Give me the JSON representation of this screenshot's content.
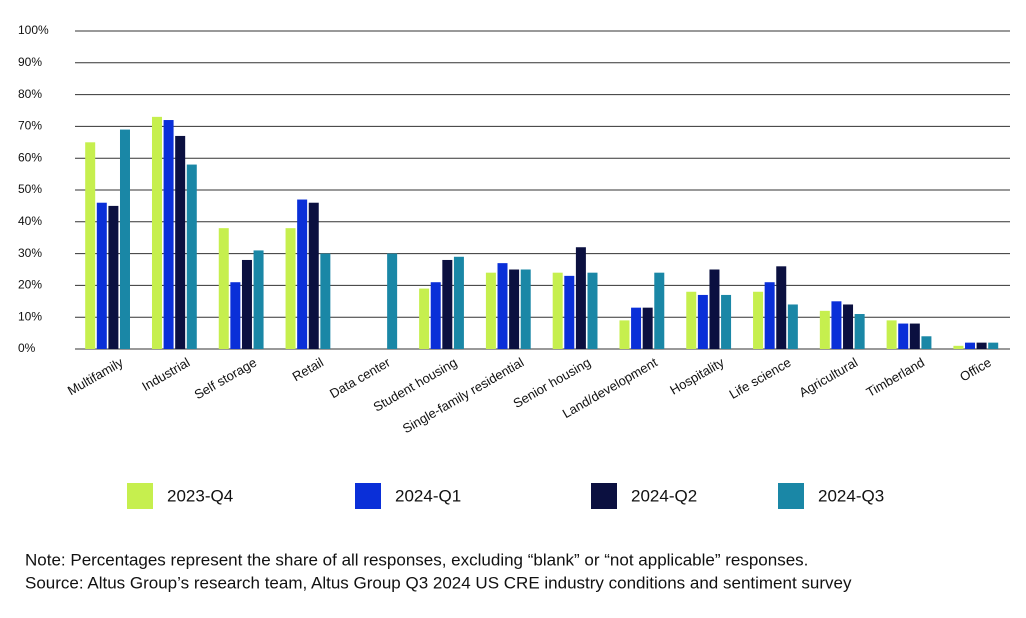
{
  "chart_data": {
    "type": "bar",
    "categories": [
      "Multifamily",
      "Industrial",
      "Self storage",
      "Retail",
      "Data center",
      "Student housing",
      "Single-family residential",
      "Senior housing",
      "Land/development",
      "Hospitality",
      "Life science",
      "Agricultural",
      "Timberland",
      "Office"
    ],
    "series": [
      {
        "name": "2023-Q4",
        "color": "#c6ef4e",
        "values": [
          65,
          73,
          38,
          38,
          null,
          19,
          24,
          24,
          9,
          18,
          18,
          12,
          9,
          1
        ]
      },
      {
        "name": "2024-Q1",
        "color": "#0a2fd8",
        "values": [
          46,
          72,
          21,
          47,
          null,
          21,
          27,
          23,
          13,
          17,
          21,
          15,
          8,
          2
        ]
      },
      {
        "name": "2024-Q2",
        "color": "#0b1040",
        "values": [
          45,
          67,
          28,
          46,
          null,
          28,
          25,
          32,
          13,
          25,
          26,
          14,
          8,
          2
        ]
      },
      {
        "name": "2024-Q3",
        "color": "#1a87a6",
        "values": [
          69,
          58,
          31,
          30,
          30,
          29,
          25,
          24,
          24,
          17,
          14,
          11,
          4,
          2
        ]
      }
    ],
    "ylim": [
      0,
      100
    ],
    "yticks": [
      {
        "value": 0,
        "label": "0%"
      },
      {
        "value": 10,
        "label": "10%"
      },
      {
        "value": 20,
        "label": "20%"
      },
      {
        "value": 30,
        "label": "30%"
      },
      {
        "value": 40,
        "label": "40%"
      },
      {
        "value": 50,
        "label": "50%"
      },
      {
        "value": 60,
        "label": "60%"
      },
      {
        "value": 70,
        "label": "70%"
      },
      {
        "value": 80,
        "label": "80%"
      },
      {
        "value": 90,
        "label": "90%"
      },
      {
        "value": 100,
        "label": "100%"
      }
    ],
    "grid": true,
    "note": "Note: Percentages represent the share of all responses, excluding “blank” or “not applicable” responses.",
    "source": "Source: Altus Group’s research team, Altus Group Q3 2024 US CRE industry conditions and sentiment survey"
  }
}
